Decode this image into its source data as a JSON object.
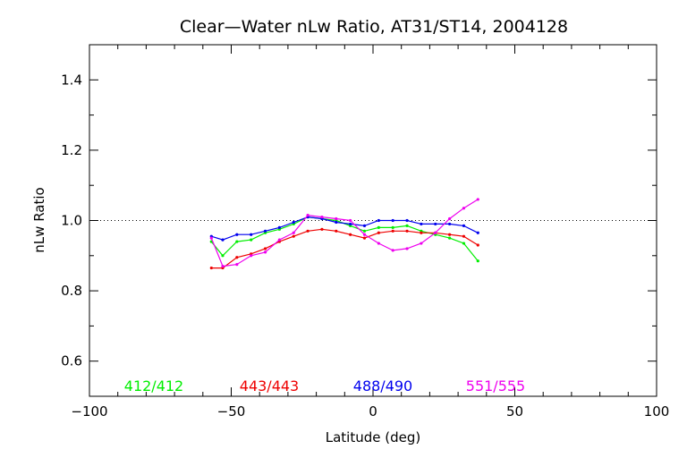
{
  "chart_data": {
    "type": "line",
    "title": "Clear—Water nLw Ratio, AT31/ST14, 2004128",
    "xlabel": "Latitude (deg)",
    "ylabel": "nLw Ratio",
    "xlim": [
      -100,
      100
    ],
    "ylim": [
      0.5,
      1.5
    ],
    "x_ticks": [
      -100,
      -50,
      0,
      50,
      100
    ],
    "y_ticks": [
      0.6,
      0.8,
      1.0,
      1.2,
      1.4
    ],
    "x_tick_labels": [
      "−100",
      "−50",
      "0",
      "50",
      "100"
    ],
    "y_tick_labels": [
      "0.6",
      "0.8",
      "1.0",
      "1.2",
      "1.4"
    ],
    "reference_line": {
      "y": 1.0,
      "style": "dotted"
    },
    "grid": false,
    "legend_placement": "bottom inside plot",
    "series": [
      {
        "name": "412/412",
        "color": "#00ee00",
        "x": [
          -57,
          -53,
          -48,
          -43,
          -38,
          -33,
          -28,
          -23,
          -18,
          -13,
          -8,
          -3,
          2,
          7,
          12,
          17,
          22,
          27,
          32,
          37
        ],
        "y": [
          0.94,
          0.9,
          0.94,
          0.945,
          0.965,
          0.975,
          0.99,
          1.01,
          1.005,
          1.0,
          0.985,
          0.97,
          0.98,
          0.98,
          0.985,
          0.97,
          0.96,
          0.95,
          0.935,
          0.885
        ]
      },
      {
        "name": "443/443",
        "color": "#ee0000",
        "x": [
          -57,
          -53,
          -48,
          -43,
          -38,
          -33,
          -28,
          -23,
          -18,
          -13,
          -8,
          -3,
          2,
          7,
          12,
          17,
          22,
          27,
          32,
          37
        ],
        "y": [
          0.865,
          0.865,
          0.895,
          0.905,
          0.92,
          0.94,
          0.955,
          0.97,
          0.975,
          0.97,
          0.96,
          0.95,
          0.965,
          0.97,
          0.97,
          0.965,
          0.965,
          0.96,
          0.955,
          0.93
        ]
      },
      {
        "name": "488/490",
        "color": "#0000ee",
        "x": [
          -57,
          -53,
          -48,
          -43,
          -38,
          -33,
          -28,
          -23,
          -18,
          -13,
          -8,
          -3,
          2,
          7,
          12,
          17,
          22,
          27,
          32,
          37
        ],
        "y": [
          0.955,
          0.945,
          0.96,
          0.96,
          0.97,
          0.98,
          0.995,
          1.01,
          1.005,
          0.995,
          0.99,
          0.985,
          1.0,
          1.0,
          1.0,
          0.99,
          0.99,
          0.99,
          0.985,
          0.965
        ]
      },
      {
        "name": "551/555",
        "color": "#ee00ee",
        "x": [
          -57,
          -53,
          -48,
          -43,
          -38,
          -33,
          -28,
          -23,
          -18,
          -13,
          -8,
          -3,
          2,
          7,
          12,
          17,
          22,
          27,
          32,
          37
        ],
        "y": [
          0.95,
          0.87,
          0.875,
          0.9,
          0.91,
          0.945,
          0.965,
          1.015,
          1.01,
          1.005,
          1.0,
          0.96,
          0.935,
          0.915,
          0.92,
          0.935,
          0.965,
          1.005,
          1.035,
          1.06
        ]
      }
    ]
  }
}
